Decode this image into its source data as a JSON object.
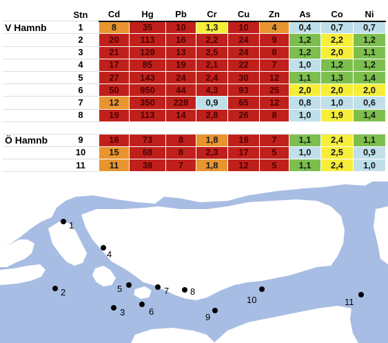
{
  "chart_data": {
    "type": "table",
    "headers": [
      "",
      "Stn",
      "Cd",
      "Hg",
      "Pb",
      "Cr",
      "Cu",
      "Zn",
      "As",
      "Co",
      "Ni"
    ],
    "rows": [
      {
        "group": "V Hamnb",
        "stn": "1",
        "cells": [
          {
            "v": "8",
            "c": "orange"
          },
          {
            "v": "35",
            "c": "red"
          },
          {
            "v": "10",
            "c": "red"
          },
          {
            "v": "1,3",
            "c": "yellow"
          },
          {
            "v": "10",
            "c": "red"
          },
          {
            "v": "4",
            "c": "orange"
          },
          {
            "v": "0,4",
            "c": "blue"
          },
          {
            "v": "0,7",
            "c": "blue"
          },
          {
            "v": "0,7",
            "c": "blue"
          }
        ]
      },
      {
        "group": "",
        "stn": "2",
        "cells": [
          {
            "v": "20",
            "c": "red"
          },
          {
            "v": "113",
            "c": "red"
          },
          {
            "v": "16",
            "c": "red"
          },
          {
            "v": "2,2",
            "c": "red"
          },
          {
            "v": "24",
            "c": "red"
          },
          {
            "v": "9",
            "c": "red"
          },
          {
            "v": "1,2",
            "c": "green"
          },
          {
            "v": "2,2",
            "c": "yellow"
          },
          {
            "v": "1,2",
            "c": "green"
          }
        ]
      },
      {
        "group": "",
        "stn": "3",
        "cells": [
          {
            "v": "21",
            "c": "red"
          },
          {
            "v": "128",
            "c": "red"
          },
          {
            "v": "13",
            "c": "red"
          },
          {
            "v": "2,5",
            "c": "red"
          },
          {
            "v": "24",
            "c": "red"
          },
          {
            "v": "8",
            "c": "red"
          },
          {
            "v": "1,2",
            "c": "green"
          },
          {
            "v": "2,0",
            "c": "yellow"
          },
          {
            "v": "1,1",
            "c": "green"
          }
        ]
      },
      {
        "group": "",
        "stn": "4",
        "cells": [
          {
            "v": "17",
            "c": "red"
          },
          {
            "v": "85",
            "c": "red"
          },
          {
            "v": "19",
            "c": "red"
          },
          {
            "v": "2,1",
            "c": "red"
          },
          {
            "v": "22",
            "c": "red"
          },
          {
            "v": "7",
            "c": "red"
          },
          {
            "v": "1,0",
            "c": "blue"
          },
          {
            "v": "1,2",
            "c": "green"
          },
          {
            "v": "1,2",
            "c": "green"
          }
        ]
      },
      {
        "group": "",
        "stn": "5",
        "cells": [
          {
            "v": "27",
            "c": "red"
          },
          {
            "v": "143",
            "c": "red"
          },
          {
            "v": "24",
            "c": "red"
          },
          {
            "v": "2,4",
            "c": "red"
          },
          {
            "v": "30",
            "c": "red"
          },
          {
            "v": "12",
            "c": "red"
          },
          {
            "v": "1,1",
            "c": "green"
          },
          {
            "v": "1,3",
            "c": "green"
          },
          {
            "v": "1,4",
            "c": "green"
          }
        ]
      },
      {
        "group": "",
        "stn": "6",
        "cells": [
          {
            "v": "50",
            "c": "red"
          },
          {
            "v": "950",
            "c": "red"
          },
          {
            "v": "44",
            "c": "red"
          },
          {
            "v": "4,3",
            "c": "red"
          },
          {
            "v": "93",
            "c": "red"
          },
          {
            "v": "25",
            "c": "red"
          },
          {
            "v": "2,0",
            "c": "yellow"
          },
          {
            "v": "2,0",
            "c": "yellow"
          },
          {
            "v": "2,0",
            "c": "yellow"
          }
        ]
      },
      {
        "group": "",
        "stn": "7",
        "cells": [
          {
            "v": "12",
            "c": "orange"
          },
          {
            "v": "350",
            "c": "red"
          },
          {
            "v": "228",
            "c": "red"
          },
          {
            "v": "0,9",
            "c": "blue"
          },
          {
            "v": "65",
            "c": "red"
          },
          {
            "v": "12",
            "c": "red"
          },
          {
            "v": "0,8",
            "c": "blue"
          },
          {
            "v": "1,0",
            "c": "blue"
          },
          {
            "v": "0,6",
            "c": "blue"
          }
        ]
      },
      {
        "group": "",
        "stn": "8",
        "cells": [
          {
            "v": "19",
            "c": "red"
          },
          {
            "v": "113",
            "c": "red"
          },
          {
            "v": "14",
            "c": "red"
          },
          {
            "v": "2,8",
            "c": "red"
          },
          {
            "v": "26",
            "c": "red"
          },
          {
            "v": "8",
            "c": "red"
          },
          {
            "v": "1,0",
            "c": "blue"
          },
          {
            "v": "1,9",
            "c": "yellow"
          },
          {
            "v": "1,4",
            "c": "green"
          }
        ]
      },
      {
        "gap": true
      },
      {
        "group": "Ö Hamnb",
        "stn": "9",
        "cells": [
          {
            "v": "16",
            "c": "red"
          },
          {
            "v": "73",
            "c": "red"
          },
          {
            "v": "8",
            "c": "red"
          },
          {
            "v": "1,8",
            "c": "orange"
          },
          {
            "v": "19",
            "c": "red"
          },
          {
            "v": "7",
            "c": "red"
          },
          {
            "v": "1,1",
            "c": "green"
          },
          {
            "v": "2,4",
            "c": "yellow"
          },
          {
            "v": "1,1",
            "c": "green"
          }
        ]
      },
      {
        "group": "",
        "stn": "10",
        "cells": [
          {
            "v": "15",
            "c": "orange"
          },
          {
            "v": "68",
            "c": "red"
          },
          {
            "v": "8",
            "c": "red"
          },
          {
            "v": "2,3",
            "c": "red"
          },
          {
            "v": "17",
            "c": "red"
          },
          {
            "v": "5",
            "c": "red"
          },
          {
            "v": "1,0",
            "c": "blue"
          },
          {
            "v": "2,5",
            "c": "yellow"
          },
          {
            "v": "0,9",
            "c": "blue"
          }
        ]
      },
      {
        "group": "",
        "stn": "11",
        "cells": [
          {
            "v": "11",
            "c": "orange"
          },
          {
            "v": "38",
            "c": "red"
          },
          {
            "v": "7",
            "c": "red"
          },
          {
            "v": "1,8",
            "c": "orange"
          },
          {
            "v": "12",
            "c": "red"
          },
          {
            "v": "5",
            "c": "red"
          },
          {
            "v": "1,1",
            "c": "green"
          },
          {
            "v": "2,4",
            "c": "yellow"
          },
          {
            "v": "1,0",
            "c": "blue"
          }
        ]
      }
    ]
  },
  "colors": {
    "red": "#c0201c",
    "orange": "#e8952f",
    "yellow": "#f7ee3a",
    "blue": "#bfe0ea",
    "green": "#7dbf4e",
    "water": "#a8bde3"
  },
  "map": {
    "stations": [
      "1",
      "2",
      "3",
      "4",
      "5",
      "6",
      "7",
      "8",
      "9",
      "10",
      "11"
    ]
  }
}
